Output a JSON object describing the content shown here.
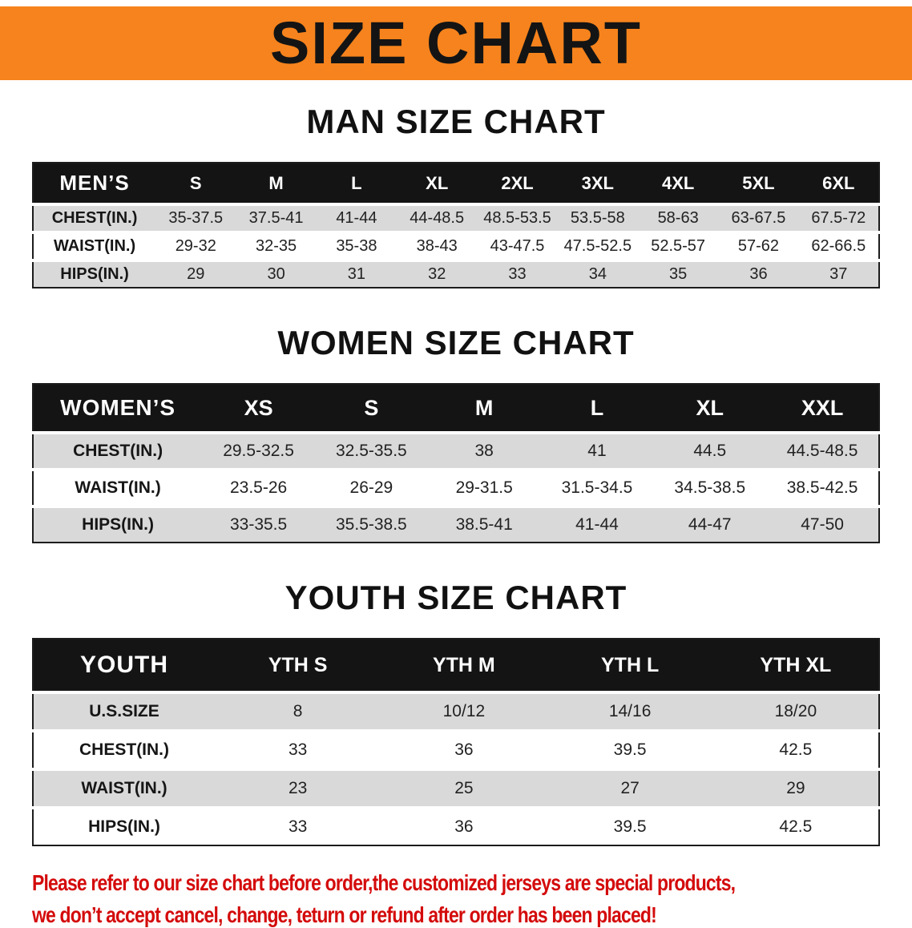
{
  "banner": {
    "title": "SIZE CHART",
    "bg_color": "#f6831d"
  },
  "sections": [
    {
      "id": "men",
      "heading": "MAN SIZE CHART",
      "table": {
        "header": [
          "MEN’S",
          "S",
          "M",
          "L",
          "XL",
          "2XL",
          "3XL",
          "4XL",
          "5XL",
          "6XL"
        ],
        "rows": [
          [
            "CHEST(IN.)",
            "35-37.5",
            "37.5-41",
            "41-44",
            "44-48.5",
            "48.5-53.5",
            "53.5-58",
            "58-63",
            "63-67.5",
            "67.5-72"
          ],
          [
            "WAIST(IN.)",
            "29-32",
            "32-35",
            "35-38",
            "38-43",
            "43-47.5",
            "47.5-52.5",
            "52.5-57",
            "57-62",
            "62-66.5"
          ],
          [
            "HIPS(IN.)",
            "29",
            "30",
            "31",
            "32",
            "33",
            "34",
            "35",
            "36",
            "37"
          ]
        ]
      }
    },
    {
      "id": "women",
      "heading": "WOMEN SIZE CHART",
      "table": {
        "header": [
          "WOMEN’S",
          "XS",
          "S",
          "M",
          "L",
          "XL",
          "XXL"
        ],
        "rows": [
          [
            "CHEST(IN.)",
            "29.5-32.5",
            "32.5-35.5",
            "38",
            "41",
            "44.5",
            "44.5-48.5"
          ],
          [
            "WAIST(IN.)",
            "23.5-26",
            "26-29",
            "29-31.5",
            "31.5-34.5",
            "34.5-38.5",
            "38.5-42.5"
          ],
          [
            "HIPS(IN.)",
            "33-35.5",
            "35.5-38.5",
            "38.5-41",
            "41-44",
            "44-47",
            "47-50"
          ]
        ]
      }
    },
    {
      "id": "youth",
      "heading": "YOUTH SIZE CHART",
      "table": {
        "header": [
          "YOUTH",
          "YTH S",
          "YTH M",
          "YTH L",
          "YTH XL"
        ],
        "rows": [
          [
            "U.S.SIZE",
            "8",
            "10/12",
            "14/16",
            "18/20"
          ],
          [
            "CHEST(IN.)",
            "33",
            "36",
            "39.5",
            "42.5"
          ],
          [
            "WAIST(IN.)",
            "23",
            "25",
            "27",
            "29"
          ],
          [
            "HIPS(IN.)",
            "33",
            "36",
            "39.5",
            "42.5"
          ]
        ]
      }
    }
  ],
  "disclaimer": {
    "color": "#d40b0b",
    "line1": "Please refer to our size chart before order,the customized jerseys are special products,",
    "line2": "we don’t accept cancel, change, teturn or refund after order has been placed!"
  }
}
